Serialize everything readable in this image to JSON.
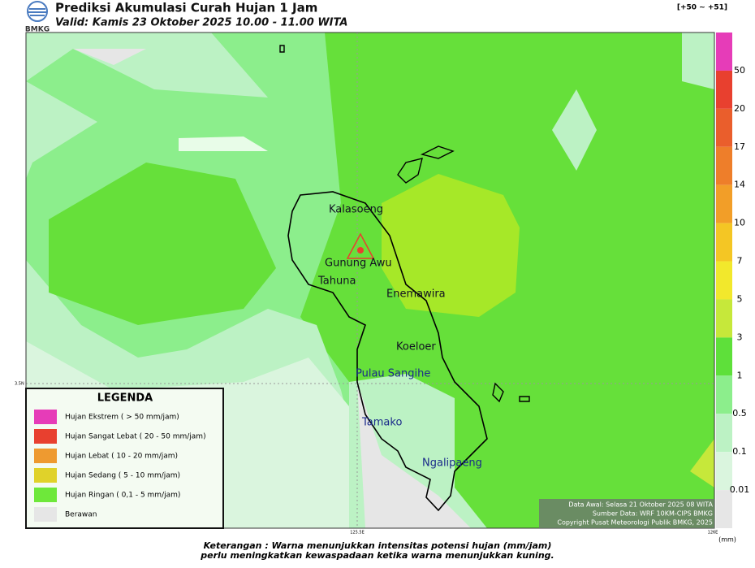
{
  "header": {
    "title": "Prediksi Akumulasi Curah Hujan 1 Jam",
    "subtitle": "Valid: Kamis 23 Oktober 2025 10.00 - 11.00 WITA",
    "logo_text": "BMKG",
    "range_note": "[+50 ~ +51]"
  },
  "map": {
    "places": [
      "Kalasoeng",
      "Gunung Awu",
      "Tahuna",
      "Enemawira",
      "Koeloer",
      "Pulau Sangihe",
      "Tamako",
      "Ngalipaeng"
    ],
    "axis_labels": {
      "lat": "3.5N",
      "lon1": "125.5E",
      "lon2": "126E"
    }
  },
  "colorbar": {
    "unit": "(mm)",
    "labels": [
      "50",
      "20",
      "17",
      "14",
      "10",
      "7",
      "5",
      "3",
      "1",
      "0.5",
      "0.1",
      "0.01"
    ],
    "colors": [
      "#e63cb8",
      "#e8402f",
      "#ea5e2c",
      "#ee7e2a",
      "#f29e28",
      "#f4c624",
      "#f2e82c",
      "#c6e83a",
      "#5ee03a",
      "#8cee8c",
      "#bcf2c4",
      "#daf5de",
      "#e6e6e6"
    ]
  },
  "legend": {
    "title": "LEGENDA",
    "items": [
      {
        "label": "Hujan Ekstrem ( > 50 mm/jam)",
        "color": "#e63cb8"
      },
      {
        "label": "Hujan Sangat Lebat ( 20 - 50 mm/jam)",
        "color": "#e8402f"
      },
      {
        "label": "Hujan Lebat ( 10 - 20 mm/jam)",
        "color": "#ee9a30"
      },
      {
        "label": "Hujan Sedang ( 5 - 10 mm/jam)",
        "color": "#e0d22a"
      },
      {
        "label": "Hujan Ringan ( 0,1 - 5 mm/jam)",
        "color": "#6ee83a"
      },
      {
        "label": "Berawan",
        "color": "#e6e6e6"
      }
    ]
  },
  "credits": [
    "Data Awal: Selasa 21 Oktober 2025 08 WITA",
    "Sumber Data: WRF 10KM-CIPS BMKG",
    "Copyright Pusat Meteorologi Publik BMKG, 2025"
  ],
  "footer": [
    "Keterangan : Warna menunjukkan intensitas potensi hujan (mm/jam)",
    "perlu meningkatkan kewaspadaan ketika warna menunjukkan kuning."
  ]
}
